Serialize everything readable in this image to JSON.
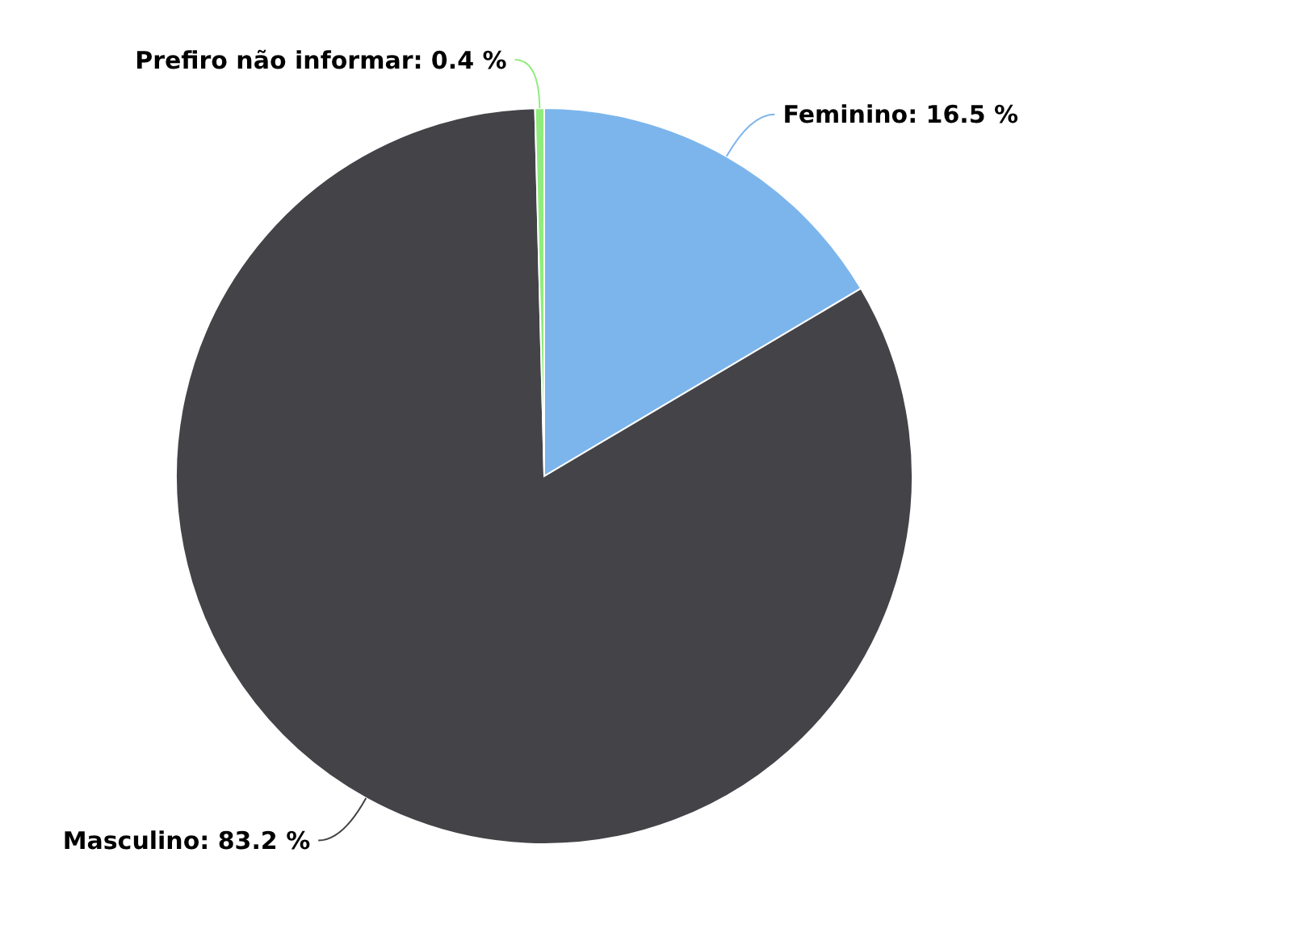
{
  "chart_data": {
    "type": "pie",
    "categories": [
      "Feminino",
      "Masculino",
      "Prefiro não informar"
    ],
    "values": [
      16.5,
      83.2,
      0.4
    ],
    "colors": [
      "#7cb5ec",
      "#434348",
      "#90ed7d"
    ],
    "value_labels": [
      "16.5 %",
      "83.2 %",
      "0.4 %"
    ]
  }
}
